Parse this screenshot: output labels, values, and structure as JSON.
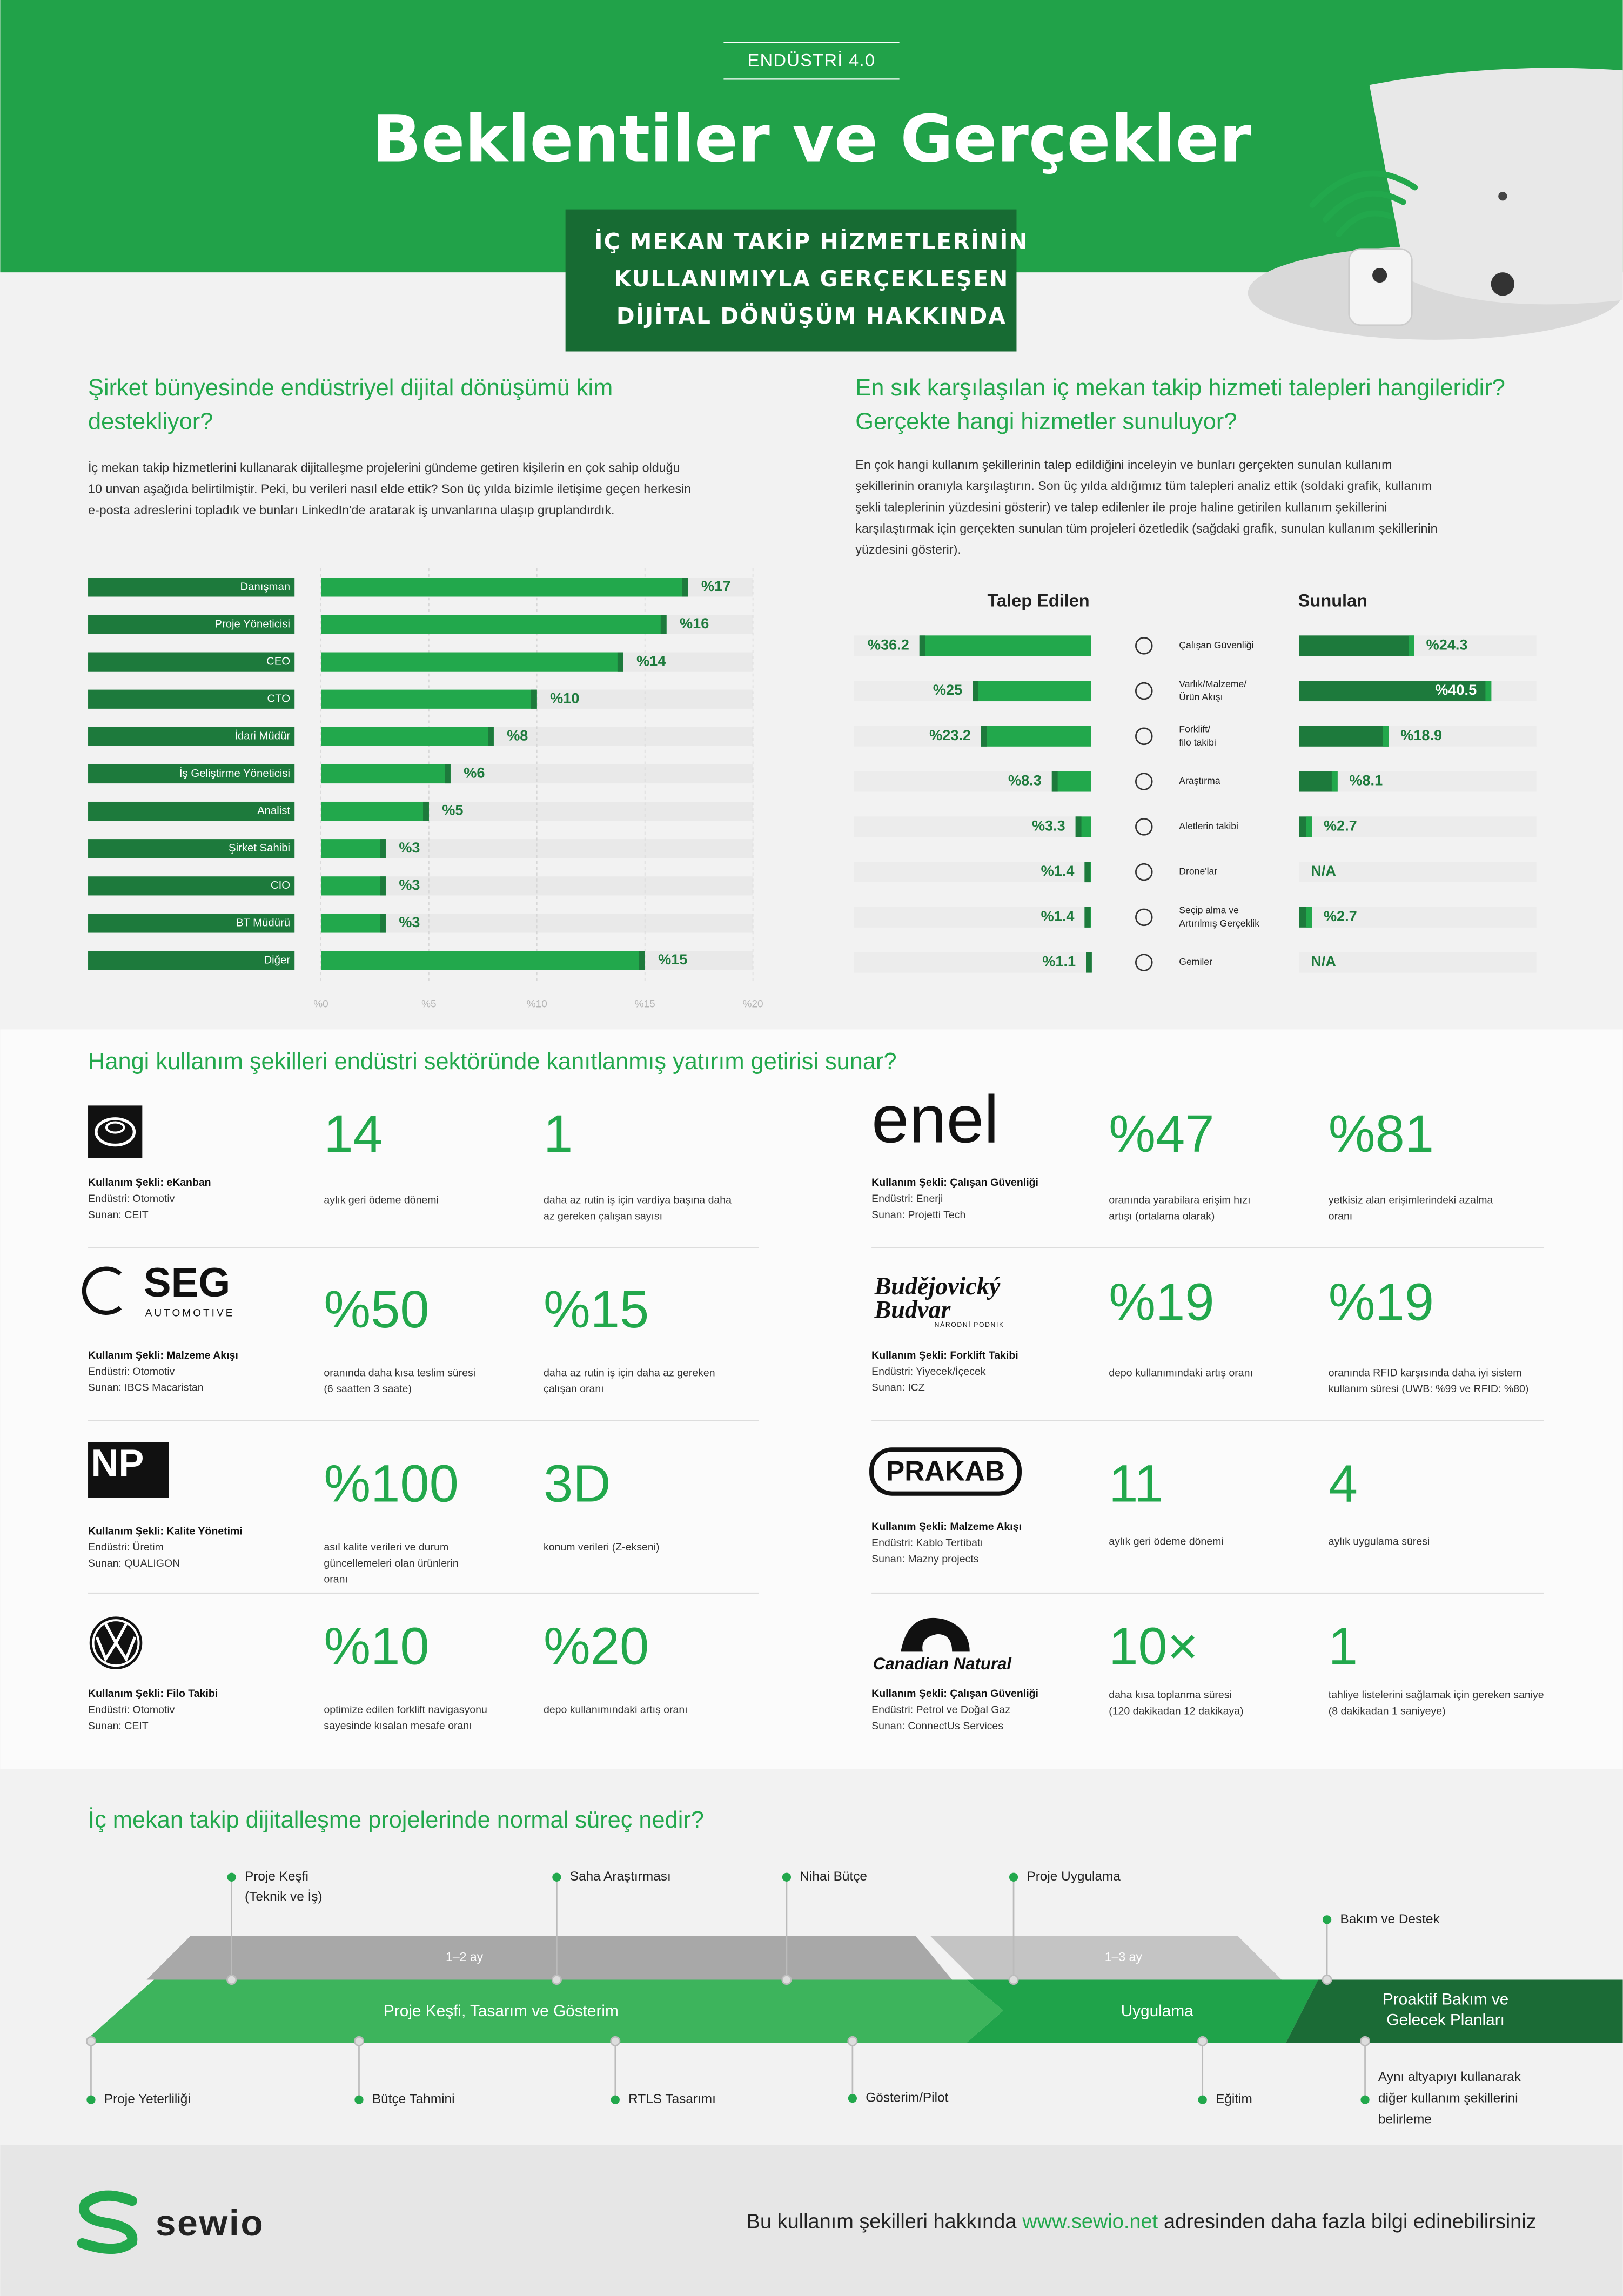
{
  "header": {
    "kicker": "ENDÜSTRİ 4.0",
    "title": "Beklentiler ve Gerçekler",
    "subtitle": "İÇ MEKAN TAKİP HİZMETLERİNİN\nKULLANIMIYLA GERÇEKLEŞEN\nDİJİTAL DÖNÜŞÜM HAKKINDA"
  },
  "supporters": {
    "title": "Şirket bünyesinde endüstriyel dijital dönüşümü kim\ndestekliyor?",
    "text": "İç mekan takip hizmetlerini kullanarak dijitalleşme projelerini gündeme getiren kişilerin en çok sahip olduğu\n10 unvan aşağıda belirtilmiştir. Peki, bu verileri nasıl elde ettik? Son üç yılda bizimle iletişime geçen herkesin\ne-posta adreslerini topladık ve bunları LinkedIn'de aratarak iş unvanlarına ulaşıp gruplandırdık."
  },
  "requests": {
    "title": "En sık karşılaşılan iç mekan takip hizmeti talepleri hangileridir?\nGerçekte hangi hizmetler sunuluyor?",
    "text": "En çok hangi kullanım şekillerinin talep edildiğini inceleyin ve bunları gerçekten sunulan kullanım\nşekillerinin oranıyla karşılaştırın. Son üç yılda aldığımız tüm talepleri analiz ettik (soldaki grafik, kullanım\nşekli taleplerinin yüzdesini gösterir) ve talep edilenler ile proje haline getirilen kullanım şekillerini\nkarşılaştırmak için gerçekten sunulan tüm projeleri özetledik (sağdaki grafik, sunulan kullanım şekillerinin\nyüzdesini gösterir)."
  },
  "chart_data": [
    {
      "type": "bar",
      "orientation": "horizontal",
      "categories": [
        "Danışman",
        "Proje Yöneticisi",
        "CEO",
        "CTO",
        "İdari Müdür",
        "İş Geliştirme Yöneticisi",
        "Analist",
        "Şirket Sahibi",
        "CIO",
        "BT Müdürü",
        "Diğer"
      ],
      "values": [
        17,
        16,
        14,
        10,
        8,
        6,
        5,
        3,
        3,
        3,
        15
      ],
      "value_labels": [
        "%17",
        "%16",
        "%14",
        "%10",
        "%8",
        "%6",
        "%5",
        "%3",
        "%3",
        "%3",
        "%15"
      ],
      "xlim": [
        0,
        20
      ],
      "xticks": [
        {
          "value": 0,
          "label": "%0"
        },
        {
          "value": 5,
          "label": "%5"
        },
        {
          "value": 10,
          "label": "%10"
        },
        {
          "value": 15,
          "label": "%15"
        },
        {
          "value": 20,
          "label": "%20"
        }
      ],
      "grid": true,
      "color": "#22a84c",
      "label_color": "#1d7a3c"
    },
    {
      "type": "diverging_bar",
      "categories": [
        "Çalışan Güvenliği",
        "Varlık/Malzeme/\nÜrün Akışı",
        "Forklift/\nfilo takibi",
        "Araştırma",
        "Aletlerin takibi",
        "Drone'lar",
        "Seçip alma ve\nArtırılmış Gerçeklik",
        "Gemiler"
      ],
      "xlim": [
        0,
        50
      ],
      "series": [
        {
          "name": "Talep Edilen",
          "color": "#22a84c",
          "values": [
            36.2,
            25,
            23.2,
            8.3,
            3.3,
            1.4,
            1.4,
            1.1
          ],
          "value_labels": [
            "%36.2",
            "%25",
            "%23.2",
            "%8.3",
            "%3.3",
            "%1.4",
            "%1.4",
            "%1.1"
          ]
        },
        {
          "name": "Sunulan",
          "color": "#1d7a3c",
          "values": [
            24.3,
            40.5,
            18.9,
            8.1,
            2.7,
            null,
            2.7,
            null
          ],
          "value_labels": [
            "%24.3",
            "%40.5",
            "%18.9",
            "%8.1",
            "%2.7",
            "N/A",
            "%2.7",
            "N/A"
          ]
        }
      ]
    }
  ],
  "roi": {
    "title": "Hangi kullanım şekilleri endüstri sektöründe kanıtlanmış yatırım getirisi sunar?",
    "cards": [
      {
        "use_case": "Kullanım Şekli: eKanban",
        "industry": "Endüstri: Otomotiv",
        "provider": "Sunan: CEIT",
        "stats": [
          {
            "value": "14",
            "text": "aylık geri ödeme dönemi"
          },
          {
            "value": "1",
            "text": "daha az rutin iş için vardiya başına daha\naz gereken çalışan sayısı"
          }
        ]
      },
      {
        "logo": "enel",
        "use_case": "Kullanım Şekli: Çalışan Güvenliği",
        "industry": "Endüstri: Enerji",
        "provider": "Sunan: Projetti Tech",
        "stats": [
          {
            "value": "%47",
            "text": "oranında yarabilara erişim hızı\nartışı (ortalama olarak)"
          },
          {
            "value": "%81",
            "text": "yetkisiz alan erişimlerindeki azalma\noranı"
          }
        ]
      },
      {
        "logo": "SEG",
        "logo_sub": "AUTOMOTIVE",
        "use_case": "Kullanım Şekli: Malzeme Akışı",
        "industry": "Endüstri: Otomotiv",
        "provider": "Sunan: IBCS Macaristan",
        "stats": [
          {
            "value": "%50",
            "text": "oranında daha kısa teslim süresi\n(6 saatten 3 saate)"
          },
          {
            "value": "%15",
            "text": "daha az rutin iş için daha az gereken\nçalışan oranı"
          }
        ]
      },
      {
        "logo": "Budějovický\nBudvar",
        "logo_sub": "NÁRODNÍ PODNIK",
        "use_case": "Kullanım Şekli: Forklift Takibi",
        "industry": "Endüstri: Yiyecek/İçecek",
        "provider": "Sunan: ICZ",
        "stats": [
          {
            "value": "%19",
            "text": "depo kullanımındaki artış oranı"
          },
          {
            "value": "%19",
            "text": "oranında RFID karşısında daha iyi sistem\nkullanım süresi (UWB: %99 ve RFID: %80)"
          }
        ]
      },
      {
        "logo": "NP",
        "use_case": "Kullanım Şekli: Kalite Yönetimi",
        "industry": "Endüstri: Üretim",
        "provider": "Sunan: QUALIGON",
        "stats": [
          {
            "value": "%100",
            "text": "asıl kalite verileri ve durum\ngüncellemeleri olan ürünlerin\noranı"
          },
          {
            "value": "3D",
            "text": "konum verileri (Z-ekseni)"
          }
        ]
      },
      {
        "logo": "PRAKAB",
        "use_case": "Kullanım Şekli: Malzeme Akışı",
        "industry": "Endüstri: Kablo Tertibatı",
        "provider": "Sunan: Mazny projects",
        "stats": [
          {
            "value": "11",
            "text": "aylık geri ödeme dönemi"
          },
          {
            "value": "4",
            "text": "aylık uygulama süresi"
          }
        ]
      },
      {
        "use_case": "Kullanım Şekli: Filo Takibi",
        "industry": "Endüstri: Otomotiv",
        "provider": "Sunan: CEIT",
        "stats": [
          {
            "value": "%10",
            "text": "optimize edilen forklift navigasyonu\nsayesinde kısalan mesafe oranı"
          },
          {
            "value": "%20",
            "text": "depo kullanımındaki artış oranı"
          }
        ]
      },
      {
        "logo": "Canadian Natural",
        "use_case": "Kullanım Şekli: Çalışan Güvenliği",
        "industry": "Endüstri: Petrol ve Doğal Gaz",
        "provider": "Sunan: ConnectUs Services",
        "stats": [
          {
            "value": "10×",
            "text": "daha kısa toplanma süresi\n(120 dakikadan 12 dakikaya)"
          },
          {
            "value": "1",
            "text": "tahliye listelerini sağlamak için gereken saniye\n(8 dakikadan 1 saniyeye)"
          }
        ]
      }
    ]
  },
  "process": {
    "title": "İç mekan takip dijitalleşme projelerinde normal süreç nedir?",
    "durations": [
      "1–2 ay",
      "1–3 ay"
    ],
    "phases": [
      "Proje Keşfi, Tasarım ve Gösterim",
      "Uygulama",
      "Proaktif Bakım ve\nGelecek Planları"
    ],
    "top_milestones": [
      "Proje Keşfi\n(Teknik ve İş)",
      "Saha Araştırması",
      "Nihai Bütçe",
      "Proje Uygulama",
      "Bakım ve Destek"
    ],
    "bottom_milestones": [
      "Proje Yeterliliği",
      "Bütçe Tahmini",
      "RTLS Tasarımı",
      "Gösterim/Pilot",
      "Eğitim",
      "Aynı altyapıyı kullanarak\ndiğer kullanım şekillerini\nbelirleme"
    ]
  },
  "footer": {
    "logo": "sewio",
    "text_before": "Bu kullanım şekilleri hakkında",
    "link": "www.sewio.net",
    "text_after": "adresinden daha fazla bilgi edinebilirsiniz"
  }
}
